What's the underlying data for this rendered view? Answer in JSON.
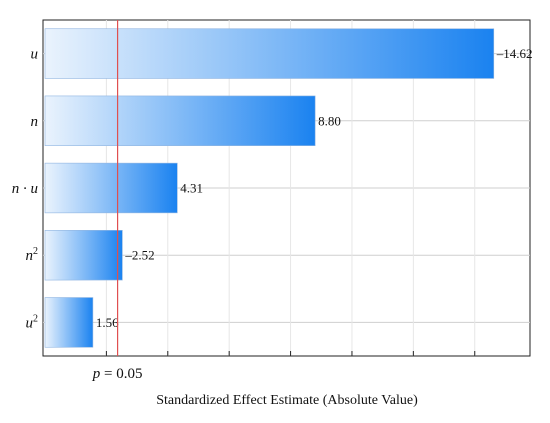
{
  "chart_data": {
    "type": "bar",
    "orientation": "horizontal",
    "title": "",
    "xlabel": "Standardized Effect Estimate (Absolute Value)",
    "ylabel": "",
    "categories": [
      "u",
      "n",
      "n · u",
      "n2",
      "u2"
    ],
    "category_labels": [
      {
        "base": "u",
        "sup": ""
      },
      {
        "base": "n",
        "sup": ""
      },
      {
        "base": "n · u",
        "sup": ""
      },
      {
        "base": "n",
        "sup": "2"
      },
      {
        "base": "u",
        "sup": "2"
      }
    ],
    "values": [
      14.62,
      8.8,
      4.31,
      2.52,
      1.56
    ],
    "value_labels": [
      "–14.62",
      "8.80",
      "4.31",
      "–2.52",
      "1.56"
    ],
    "xlim": [
      0,
      15.8
    ],
    "reference_line": {
      "value": 2.365,
      "label_italic": "p",
      "label_rest": " = 0.05",
      "color": "#e05050"
    },
    "grid": true,
    "bar_color_start": "#eaf3fd",
    "bar_color_end": "#1a82f0"
  }
}
